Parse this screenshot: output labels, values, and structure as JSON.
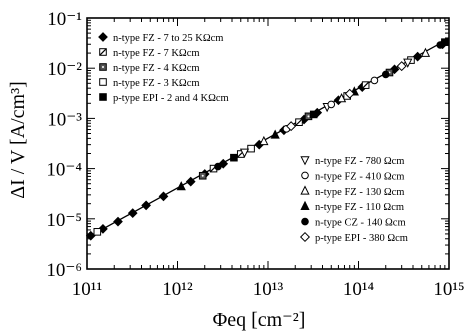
{
  "chart_data": {
    "type": "scatter",
    "xlabel": "Φeq [cm⁻²]",
    "ylabel": "ΔI / V  [A/cm³]",
    "xscale": "log",
    "yscale": "log",
    "xlim": [
      100000000000.0,
      1000000000000000.0
    ],
    "ylim": [
      1e-06,
      0.1
    ],
    "x_tick_labels": [
      "10¹¹",
      "10¹²",
      "10¹³",
      "10¹⁴",
      "10¹⁵"
    ],
    "y_tick_labels": [
      "10⁻⁶",
      "10⁻⁵",
      "10⁻⁴",
      "10⁻³",
      "10⁻²",
      "10⁻¹"
    ],
    "grid": false,
    "legend_upper_position": "top-left",
    "legend_lower_position": "bottom-right",
    "fit_line": {
      "x": [
        100000000000.0,
        1000000000000000.0
      ],
      "y": [
        4.2e-06,
        0.039
      ]
    },
    "series": [
      {
        "name": "n-type FZ - 7 to 25 KΩcm",
        "marker": "diamond-filled",
        "x": [
          110000000000.0,
          150000000000.0,
          220000000000.0,
          320000000000.0,
          450000000000.0,
          700000000000.0,
          1400000000000.0,
          2000000000000.0,
          3200000000000.0,
          8000000000000.0,
          15000000000000.0,
          25000000000000.0,
          35000000000000.0,
          60000000000000.0,
          110000000000000.0,
          250000000000000.0,
          450000000000000.0,
          850000000000000.0
        ],
        "y": [
          4.6e-06,
          6.3e-06,
          8.8e-06,
          1.3e-05,
          1.85e-05,
          2.8e-05,
          5.5e-05,
          7.8e-05,
          0.000125,
          0.0003,
          0.00058,
          0.00095,
          0.0013,
          0.0023,
          0.0042,
          0.0095,
          0.017,
          0.03
        ]
      },
      {
        "name": "n-type FZ - 7 KΩcm",
        "marker": "square-hatched",
        "x": [
          2500000000000.0,
          5000000000000.0,
          22000000000000.0,
          120000000000000.0
        ],
        "y": [
          0.0001,
          0.000195,
          0.00084,
          0.0046
        ]
      },
      {
        "name": "n-type FZ - 4 KΩcm",
        "marker": "square-dotted",
        "x": [
          1900000000000.0,
          28000000000000.0,
          220000000000000.0
        ],
        "y": [
          7.2e-05,
          0.0011,
          0.0082
        ]
      },
      {
        "name": "n-type FZ - 3 KΩcm",
        "marker": "square-open",
        "x": [
          130000000000.0,
          6500000000000.0,
          75000000000000.0,
          380000000000000.0
        ],
        "y": [
          5.5e-06,
          0.00025,
          0.0028,
          0.0145
        ]
      },
      {
        "name": "p-type EPI - 2 and 4 KΩcm",
        "marker": "square-filled",
        "x": [
          4200000000000.0,
          32000000000000.0,
          900000000000000.0
        ],
        "y": [
          0.000165,
          0.0012,
          0.033
        ]
      },
      {
        "name": "n-type FZ - 780 Ωcm",
        "marker": "triangle-down-open",
        "x": [
          5500000000000.0,
          45000000000000.0,
          350000000000000.0
        ],
        "y": [
          0.00021,
          0.0017,
          0.013
        ]
      },
      {
        "name": "n-type FZ - 410 Ωcm",
        "marker": "circle-open",
        "x": [
          16000000000000.0,
          50000000000000.0,
          150000000000000.0
        ],
        "y": [
          0.00062,
          0.0019,
          0.0057
        ]
      },
      {
        "name": "n-type FZ - 130 Ωcm",
        "marker": "triangle-up-open",
        "x": [
          9000000000000.0,
          65000000000000.0,
          550000000000000.0
        ],
        "y": [
          0.00035,
          0.0025,
          0.02
        ]
      },
      {
        "name": "n-type FZ - 110 Ωcm",
        "marker": "triangle-up-filled",
        "x": [
          1100000000000.0,
          12000000000000.0,
          90000000000000.0
        ],
        "y": [
          4.4e-05,
          0.00047,
          0.0034
        ]
      },
      {
        "name": "n-type CZ - 140 Ωcm",
        "marker": "circle-filled",
        "x": [
          2800000000000.0,
          200000000000000.0,
          800000000000000.0
        ],
        "y": [
          0.00011,
          0.0075,
          0.029
        ]
      },
      {
        "name": "p-type EPI - 380 Ωcm",
        "marker": "diamond-open",
        "x": [
          18000000000000.0,
          80000000000000.0,
          300000000000000.0
        ],
        "y": [
          0.0007,
          0.0031,
          0.011
        ]
      }
    ]
  }
}
